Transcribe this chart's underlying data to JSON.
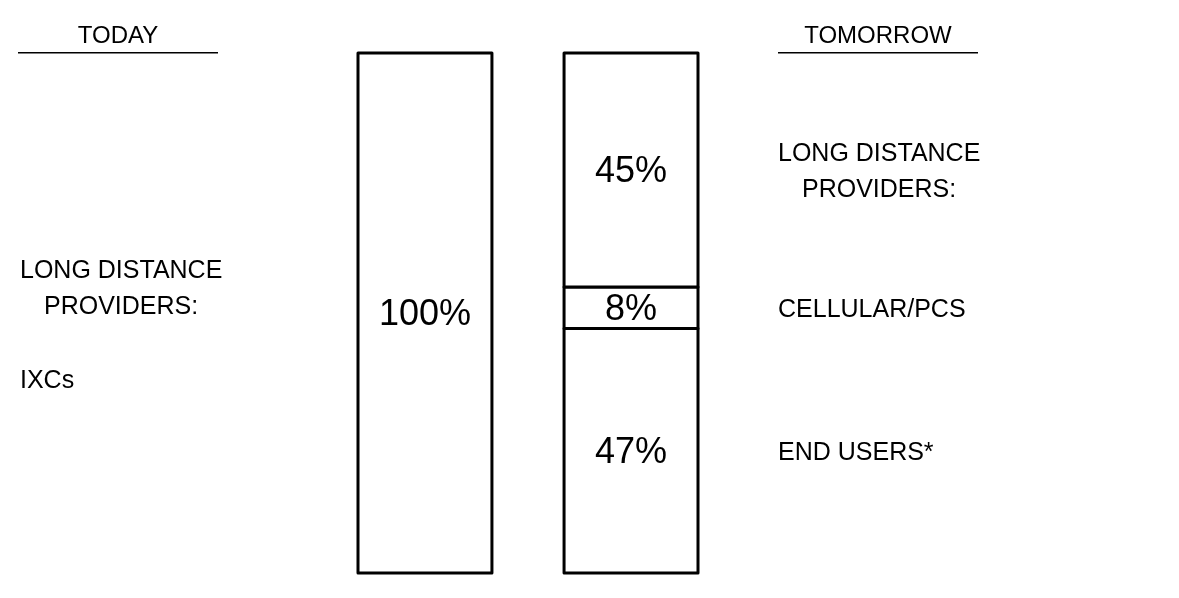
{
  "chart_data": {
    "type": "bar",
    "stacked": true,
    "categories": [
      "TODAY",
      "TOMORROW"
    ],
    "series": [
      {
        "name": "END USERS*",
        "values": [
          null,
          47
        ],
        "value_labels": [
          null,
          "47%"
        ]
      },
      {
        "name": "CELLULAR/PCS",
        "values": [
          null,
          8
        ],
        "value_labels": [
          null,
          "8%"
        ]
      },
      {
        "name": "LONG DISTANCE PROVIDERS:",
        "values": [
          100,
          45
        ],
        "value_labels": [
          "100%",
          "45%"
        ]
      }
    ],
    "annotations": [
      "LONG DISTANCE PROVIDERS:",
      "IXCs"
    ]
  }
}
